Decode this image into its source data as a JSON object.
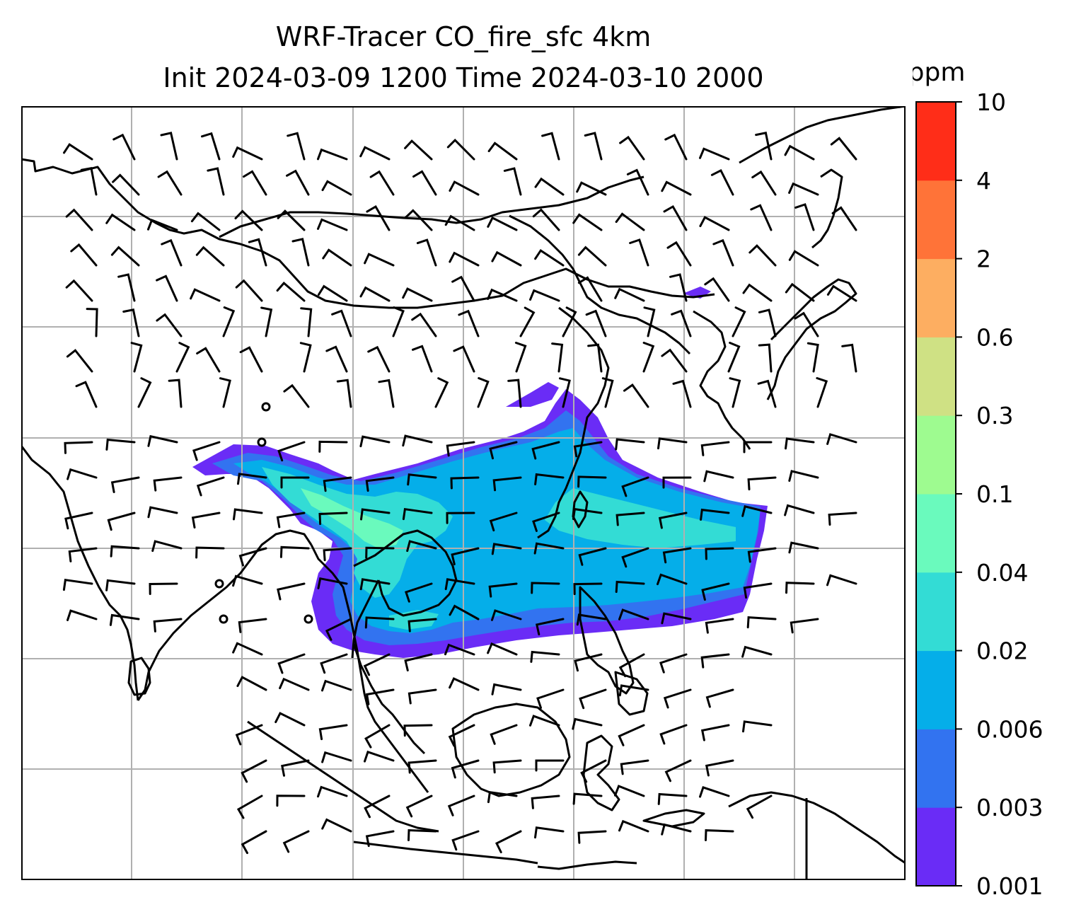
{
  "title": {
    "line1": "WRF-Tracer CO_fire_sfc 4km",
    "line2": "Init 2024-03-09 1200 Time 2024-03-10 2000"
  },
  "colorbar": {
    "unit": "ppm",
    "ticks": [
      "0.001",
      "0.003",
      "0.006",
      "0.02",
      "0.04",
      "0.1",
      "0.3",
      "0.6",
      "2",
      "4",
      "10"
    ],
    "colors": [
      "#6a2cf6",
      "#3273f0",
      "#05aee9",
      "#33dcd5",
      "#6afabd",
      "#9efb90",
      "#cfe184",
      "#fdae61",
      "#ff7338",
      "#ff2d18"
    ]
  },
  "map": {
    "grid_color": "#b0b0b0",
    "coastline_color": "#000000",
    "plume_levels": [
      "0.001",
      "0.003",
      "0.006",
      "0.02",
      "0.04"
    ]
  }
}
